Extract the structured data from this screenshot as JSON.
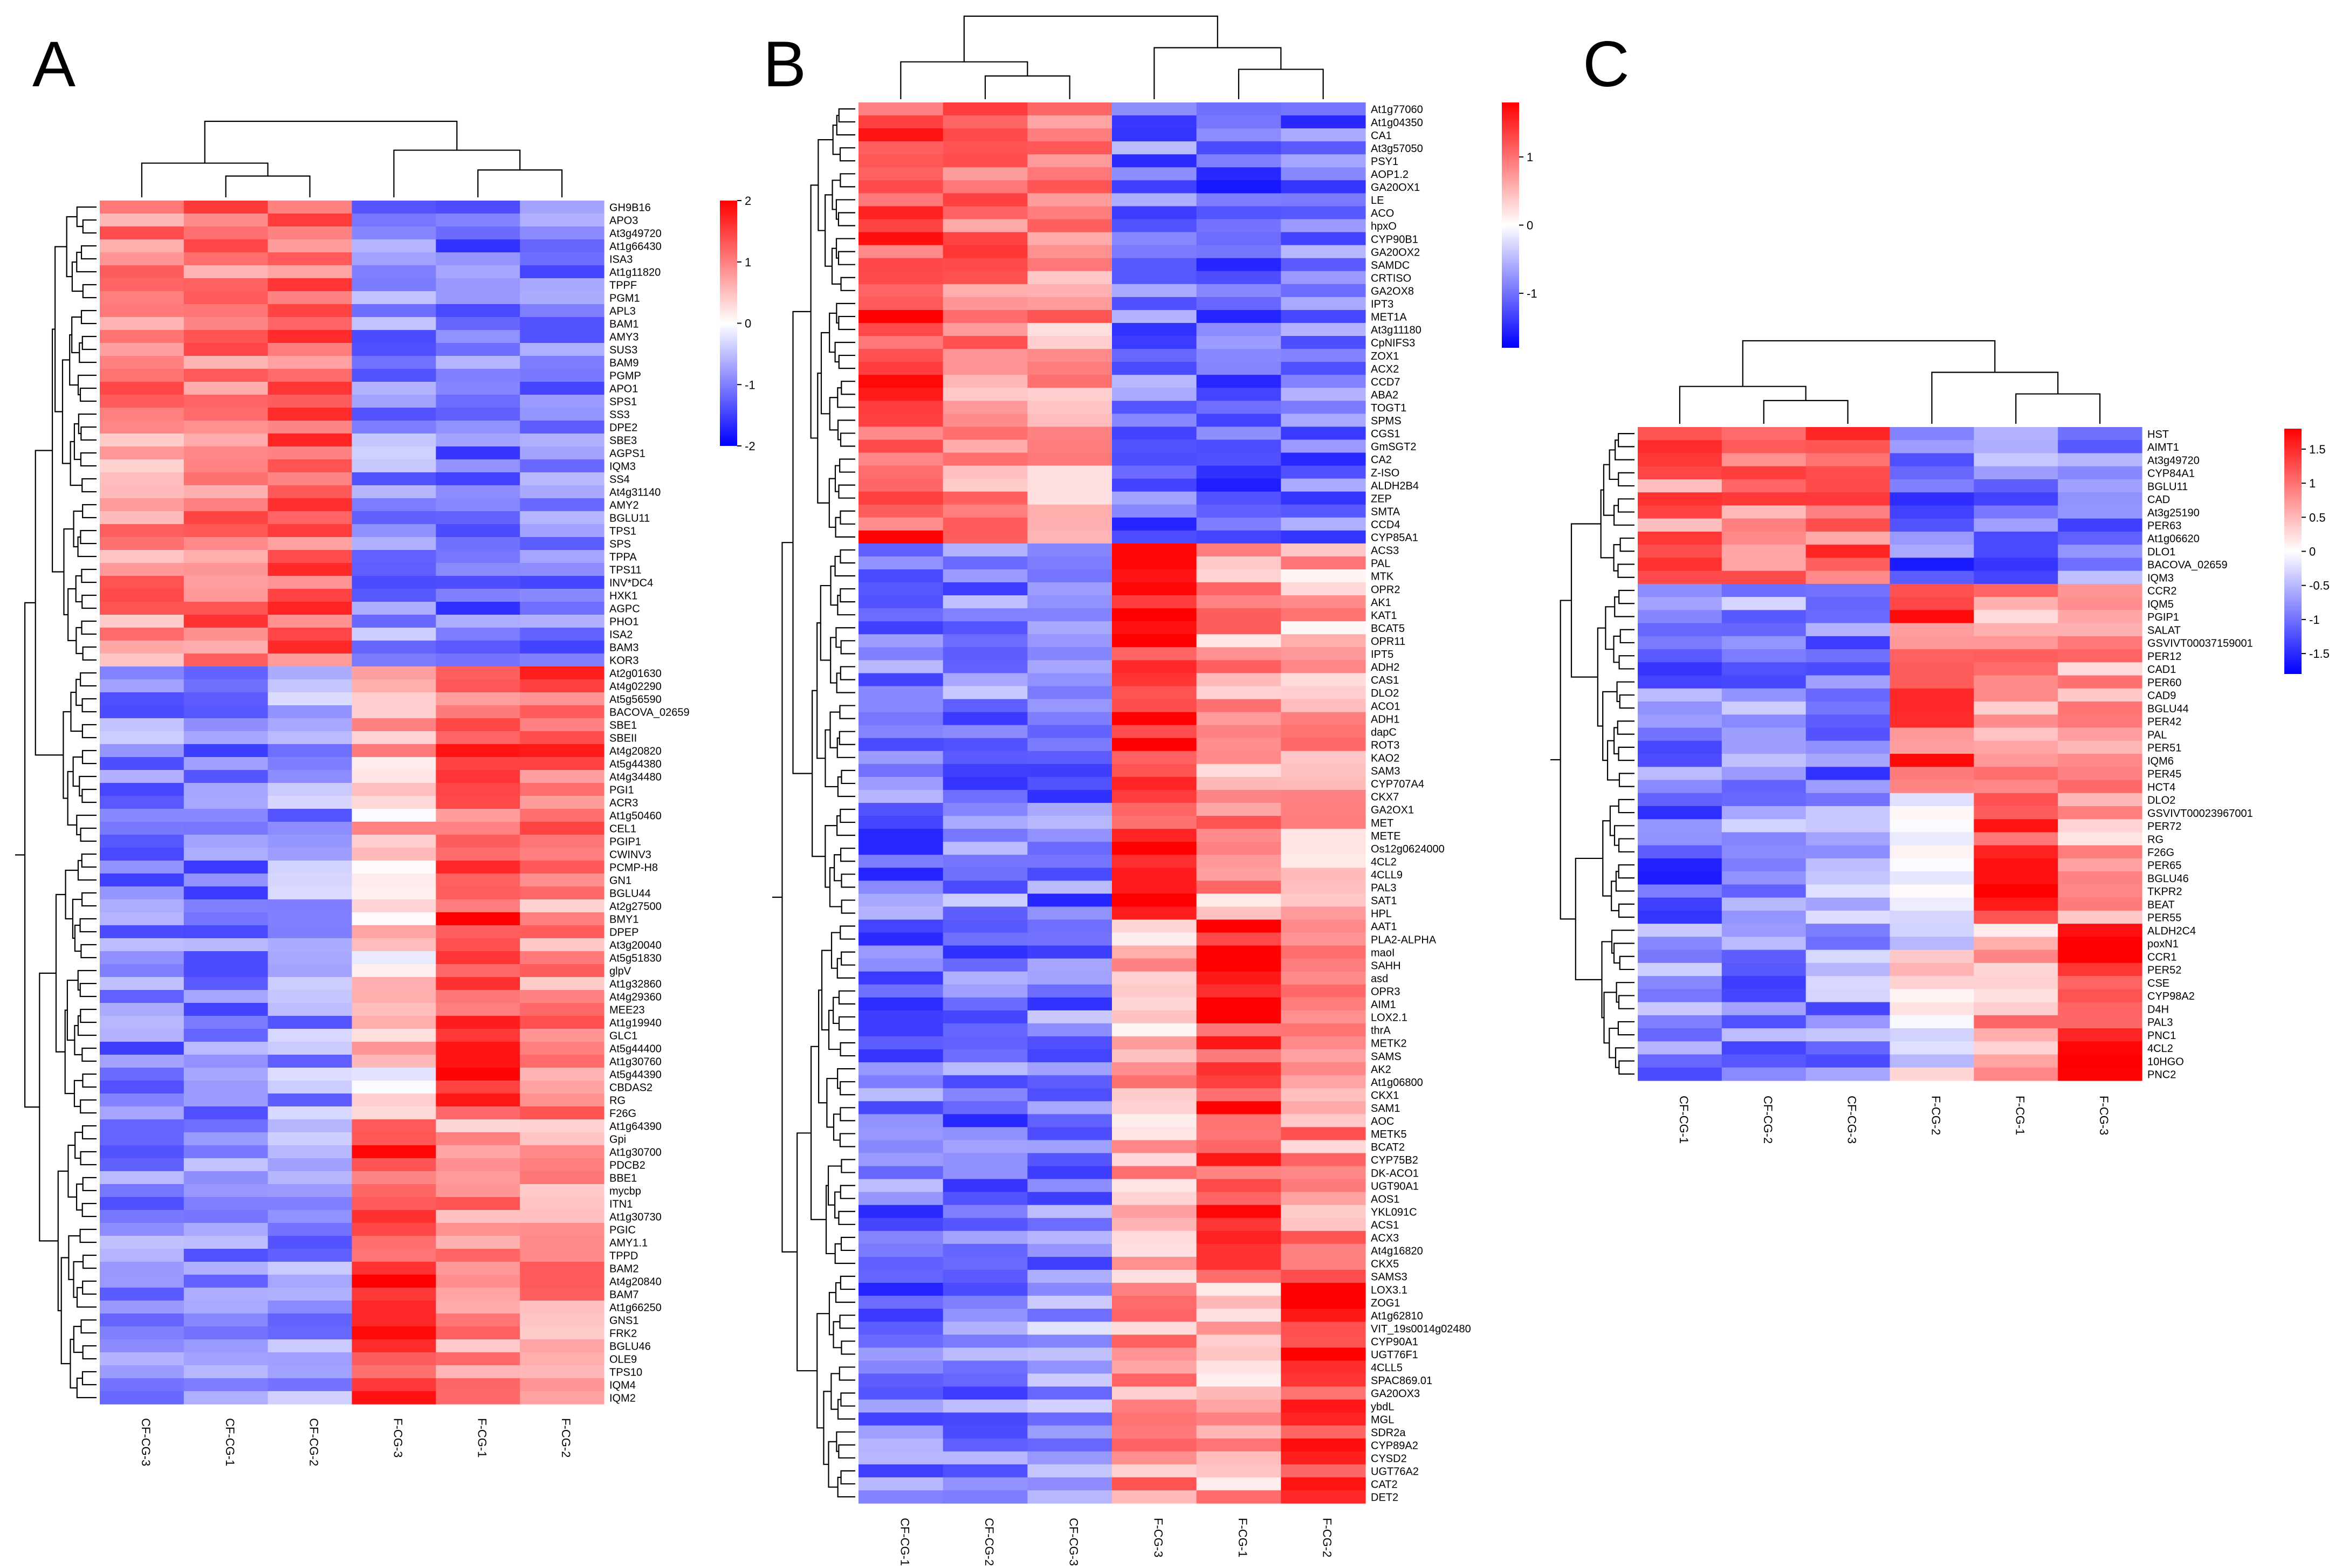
{
  "chart_data": [
    {
      "type": "heatmap",
      "panel": "A",
      "columns": [
        "CF-CG-3",
        "CF-CG-1",
        "CF-CG-2",
        "F-CG-3",
        "F-CG-1",
        "F-CG-2"
      ],
      "rows": [
        "GH9B16",
        "APO3",
        "At3g49720",
        "At1g66430",
        "ISA3",
        "At1g11820",
        "TPPF",
        "PGM1",
        "APL3",
        "BAM1",
        "AMY3",
        "SUS3",
        "BAM9",
        "PGMP",
        "APO1",
        "SPS1",
        "SS3",
        "DPE2",
        "SBE3",
        "AGPS1",
        "IQM3",
        "SS4",
        "At4g31140",
        "AMY2",
        "BGLU11",
        "TPS1",
        "SPS",
        "TPPA",
        "TPS11",
        "INV*DC4",
        "HXK1",
        "AGPC",
        "PHO1",
        "ISA2",
        "BAM3",
        "KOR3",
        "At2g01630",
        "At4g02290",
        "At5g56590",
        "BACOVA_02659",
        "SBE1",
        "SBEII",
        "At4g20820",
        "At5g44380",
        "At4g34480",
        "PGI1",
        "ACR3",
        "At1g50460",
        "CEL1",
        "PGIP1",
        "CWINV3",
        "PCMP-H8",
        "GN1",
        "BGLU44",
        "At2g27500",
        "BMY1",
        "DPEP",
        "At3g20040",
        "At5g51830",
        "glpV",
        "At1g32860",
        "At4g29360",
        "MEE23",
        "At1g19940",
        "GLC1",
        "At5g44400",
        "At1g30760",
        "At5g44390",
        "CBDAS2",
        "RG",
        "F26G",
        "At1g64390",
        "Gpi",
        "At1g30700",
        "PDCB2",
        "BBE1",
        "mycbp",
        "ITN1",
        "At1g30730",
        "PGIC",
        "AMY1.1",
        "TPPD",
        "BAM2",
        "At4g20840",
        "BAM7",
        "At1g66250",
        "GNS1",
        "FRK2",
        "BGLU46",
        "OLE9",
        "TPS10",
        "IQM4",
        "IQM2"
      ],
      "color_scale": {
        "min": -2,
        "max": 2,
        "ticks": [
          "2",
          "1",
          "0",
          "-1",
          "-2"
        ],
        "low": "#0000ff",
        "mid": "#ffffff",
        "high": "#ff0000"
      },
      "groups": [
        {
          "from": 0,
          "to": 35,
          "profile": [
            0.9,
            1.1,
            1.2,
            -0.9,
            -1.1,
            -1.0
          ]
        },
        {
          "from": 36,
          "to": 49,
          "profile": [
            -0.9,
            -1.0,
            -0.8,
            0.5,
            1.3,
            1.3
          ]
        },
        {
          "from": 50,
          "to": 70,
          "profile": [
            -1.0,
            -1.0,
            -0.8,
            0.3,
            1.5,
            0.9
          ]
        },
        {
          "from": 71,
          "to": 92,
          "profile": [
            -0.9,
            -1.0,
            -0.9,
            1.5,
            0.8,
            0.9
          ]
        }
      ]
    },
    {
      "type": "heatmap",
      "panel": "B",
      "columns": [
        "CF-CG-1",
        "CF-CG-2",
        "CF-CG-3",
        "F-CG-3",
        "F-CG-1",
        "F-CG-2"
      ],
      "rows": [
        "At1g77060",
        "At1g04350",
        "CA1",
        "At3g57050",
        "PSY1",
        "AOP1.2",
        "GA20OX1",
        "LE",
        "ACO",
        "hpxO",
        "CYP90B1",
        "GA20OX2",
        "SAMDC",
        "CRTISO",
        "GA2OX8",
        "IPT3",
        "MET1A",
        "At3g11180",
        "CpNIFS3",
        "ZOX1",
        "ACX2",
        "CCD7",
        "ABA2",
        "TOGT1",
        "SPMS",
        "CGS1",
        "GmSGT2",
        "CA2",
        "Z-ISO",
        "ALDH2B4",
        "ZEP",
        "SMTA",
        "CCD4",
        "CYP85A1",
        "ACS3",
        "PAL",
        "MTK",
        "OPR2",
        "AK1",
        "KAT1",
        "BCAT5",
        "OPR11",
        "IPT5",
        "ADH2",
        "CAS1",
        "DLO2",
        "ACO1",
        "ADH1",
        "dapC",
        "ROT3",
        "KAO2",
        "SAM3",
        "CYP707A4",
        "CKX7",
        "GA2OX1",
        "MET",
        "METE",
        "Os12g0624000",
        "4CL2",
        "4CLL9",
        "PAL3",
        "SAT1",
        "HPL",
        "AAT1",
        "PLA2-ALPHA",
        "maoI",
        "SAHH",
        "asd",
        "OPR3",
        "AIM1",
        "LOX2.1",
        "thrA",
        "METK2",
        "SAMS",
        "AK2",
        "At1g06800",
        "CKX1",
        "SAM1",
        "AOC",
        "METK5",
        "BCAT2",
        "CYP75B2",
        "DK-ACO1",
        "UGT90A1",
        "AOS1",
        "YKL091C",
        "ACS1",
        "ACX3",
        "At4g16820",
        "CKX5",
        "SAMS3",
        "LOX3.1",
        "ZOG1",
        "At1g62810",
        "VIT_19s0014g02480",
        "CYP90A1",
        "UGT76F1",
        "4CLL5",
        "SPAC869.01",
        "GA20OX3",
        "ybdL",
        "MGL",
        "SDR2a",
        "CYP89A2",
        "CYSD2",
        "UGT76A2",
        "CAT2",
        "DET2"
      ],
      "color_scale": {
        "min": -1.8,
        "max": 1.8,
        "ticks": [
          "1",
          "0",
          "-1"
        ],
        "low": "#0000ff",
        "mid": "#ffffff",
        "high": "#ff0000"
      },
      "groups": [
        {
          "from": 0,
          "to": 33,
          "profile": [
            1.3,
            0.9,
            0.7,
            -1.0,
            -1.1,
            -1.0
          ]
        },
        {
          "from": 34,
          "to": 62,
          "profile": [
            -1.0,
            -0.9,
            -1.0,
            1.5,
            0.7,
            0.6
          ]
        },
        {
          "from": 63,
          "to": 89,
          "profile": [
            -1.0,
            -1.0,
            -0.9,
            0.6,
            1.4,
            0.8
          ]
        },
        {
          "from": 90,
          "to": 107,
          "profile": [
            -1.0,
            -0.9,
            -0.6,
            0.7,
            0.5,
            1.5
          ]
        }
      ]
    },
    {
      "type": "heatmap",
      "panel": "C",
      "columns": [
        "CF-CG-1",
        "CF-CG-2",
        "CF-CG-3",
        "F-CG-2",
        "F-CG-1",
        "F-CG-3"
      ],
      "rows": [
        "HST",
        "AIMT1",
        "At3g49720",
        "CYP84A1",
        "BGLU11",
        "CAD",
        "At3g25190",
        "PER63",
        "At1g06620",
        "DLO1",
        "BACOVA_02659",
        "IQM3",
        "CCR2",
        "IQM5",
        "PGIP1",
        "SALAT",
        "GSVIVT00037159001",
        "PER12",
        "CAD1",
        "PER60",
        "CAD9",
        "BGLU44",
        "PER42",
        "PAL",
        "PER51",
        "IQM6",
        "PER45",
        "HCT4",
        "DLO2",
        "GSVIVT00023967001",
        "PER72",
        "RG",
        "F26G",
        "PER65",
        "BGLU46",
        "TKPR2",
        "BEAT",
        "PER55",
        "ALDH2C4",
        "poxN1",
        "CCR1",
        "PER52",
        "CSE",
        "CYP98A2",
        "D4H",
        "PAL3",
        "PNC1",
        "4CL2",
        "10HGO",
        "PNC2"
      ],
      "color_scale": {
        "min": -1.8,
        "max": 1.8,
        "ticks": [
          "1.5",
          "1",
          "0.5",
          "0",
          "-0.5",
          "-1",
          "-1.5"
        ],
        "low": "#0000ff",
        "mid": "#ffffff",
        "high": "#ff0000"
      },
      "groups": [
        {
          "from": 0,
          "to": 11,
          "profile": [
            1.0,
            0.9,
            1.0,
            -1.1,
            -0.9,
            -0.9
          ]
        },
        {
          "from": 12,
          "to": 27,
          "profile": [
            -0.9,
            -0.8,
            -1.0,
            1.2,
            0.8,
            0.7
          ]
        },
        {
          "from": 28,
          "to": 37,
          "profile": [
            -1.2,
            -0.6,
            -0.7,
            0.2,
            1.5,
            0.6
          ]
        },
        {
          "from": 38,
          "to": 49,
          "profile": [
            -0.8,
            -0.9,
            -0.8,
            0.0,
            0.6,
            1.6
          ]
        }
      ]
    }
  ]
}
